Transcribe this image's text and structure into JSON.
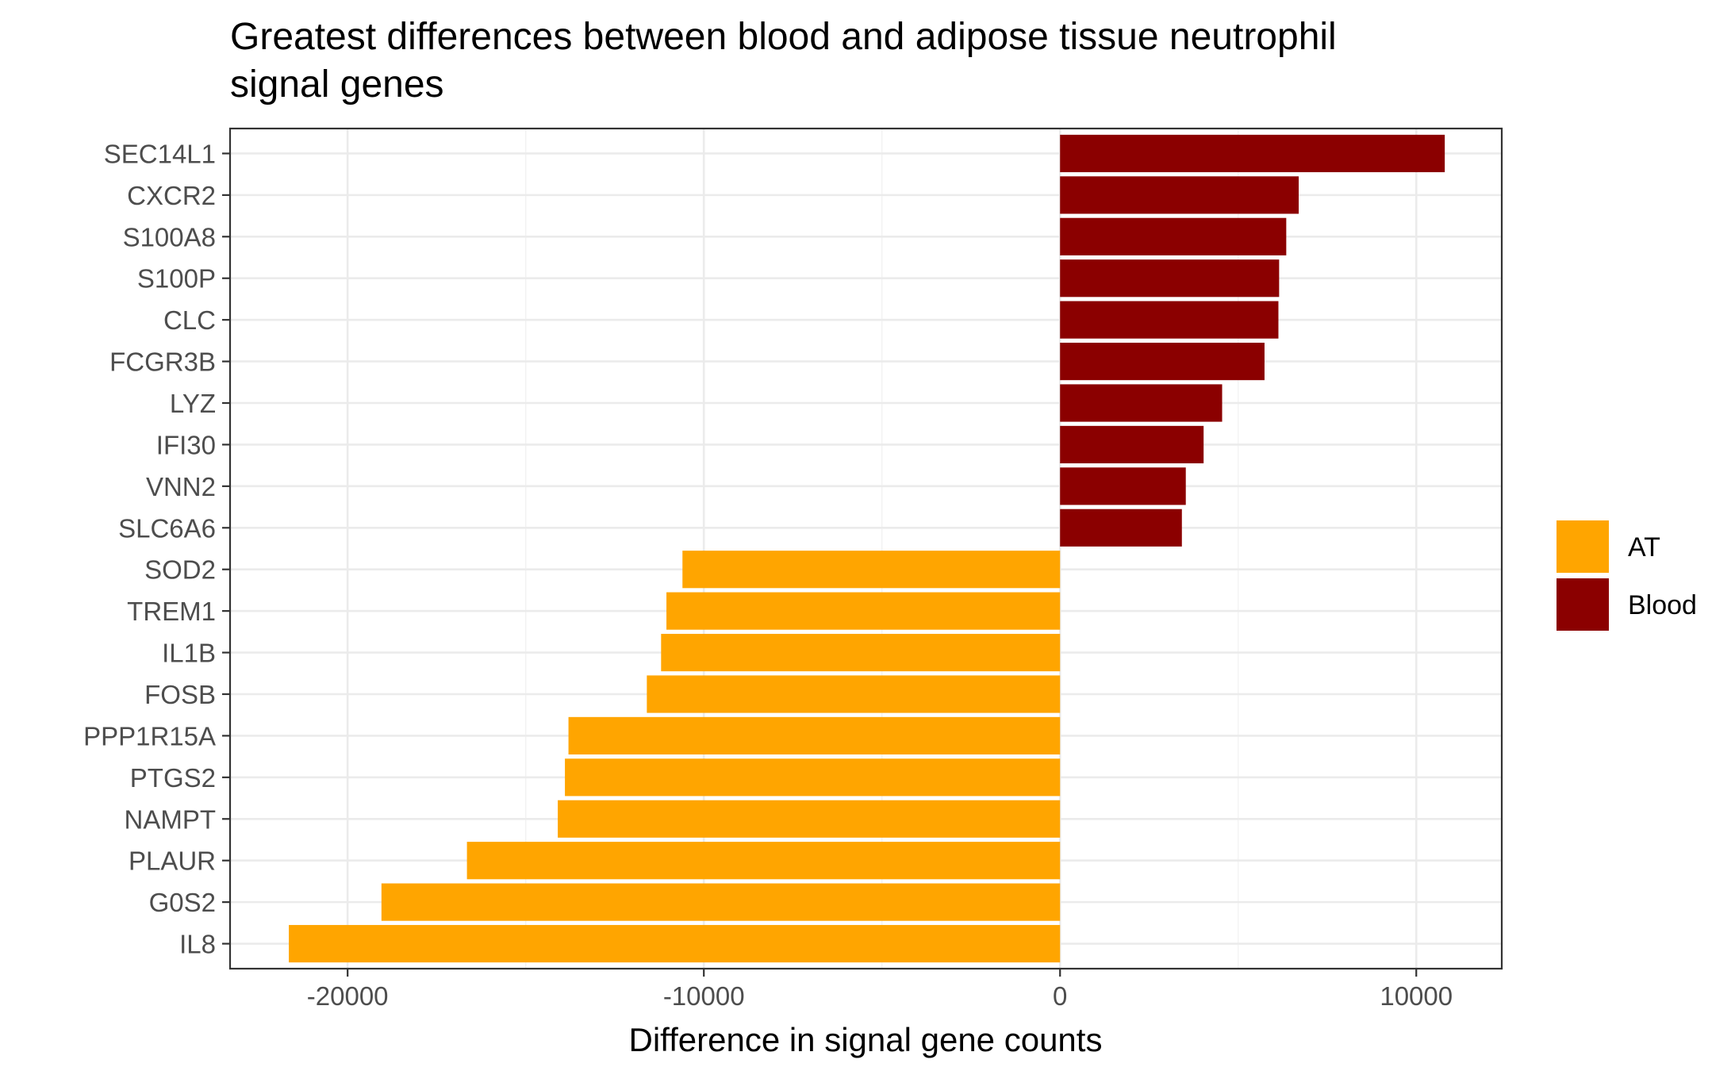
{
  "chart_data": {
    "type": "bar",
    "orientation": "horizontal",
    "title": "Greatest differences between blood and adipose tissue neutrophil signal genes",
    "title_lines": [
      "Greatest differences between blood and adipose tissue neutrophil",
      "signal genes"
    ],
    "xlabel": "Difference in signal gene counts",
    "ylabel": "",
    "xlim": [
      -23300,
      12400
    ],
    "x_ticks": [
      -20000,
      -10000,
      0,
      10000
    ],
    "x_tick_labels": [
      "-20000",
      "-10000",
      "0",
      "10000"
    ],
    "grid": true,
    "legend_position": "right",
    "legend": [
      {
        "name": "AT",
        "color": "#FFA500"
      },
      {
        "name": "Blood",
        "color": "#8B0000"
      }
    ],
    "categories": [
      "SEC14L1",
      "CXCR2",
      "S100A8",
      "S100P",
      "CLC",
      "FCGR3B",
      "LYZ",
      "IFI30",
      "VNN2",
      "SLC6A6",
      "SOD2",
      "TREM1",
      "IL1B",
      "FOSB",
      "PPP1R15A",
      "PTGS2",
      "NAMPT",
      "PLAUR",
      "G0S2",
      "IL8"
    ],
    "values": [
      10800,
      6700,
      6350,
      6150,
      6130,
      5740,
      4550,
      4030,
      3530,
      3420,
      -10600,
      -11050,
      -11200,
      -11600,
      -13800,
      -13900,
      -14100,
      -16650,
      -19050,
      -21650
    ],
    "groups": [
      "Blood",
      "Blood",
      "Blood",
      "Blood",
      "Blood",
      "Blood",
      "Blood",
      "Blood",
      "Blood",
      "Blood",
      "AT",
      "AT",
      "AT",
      "AT",
      "AT",
      "AT",
      "AT",
      "AT",
      "AT",
      "AT"
    ]
  }
}
